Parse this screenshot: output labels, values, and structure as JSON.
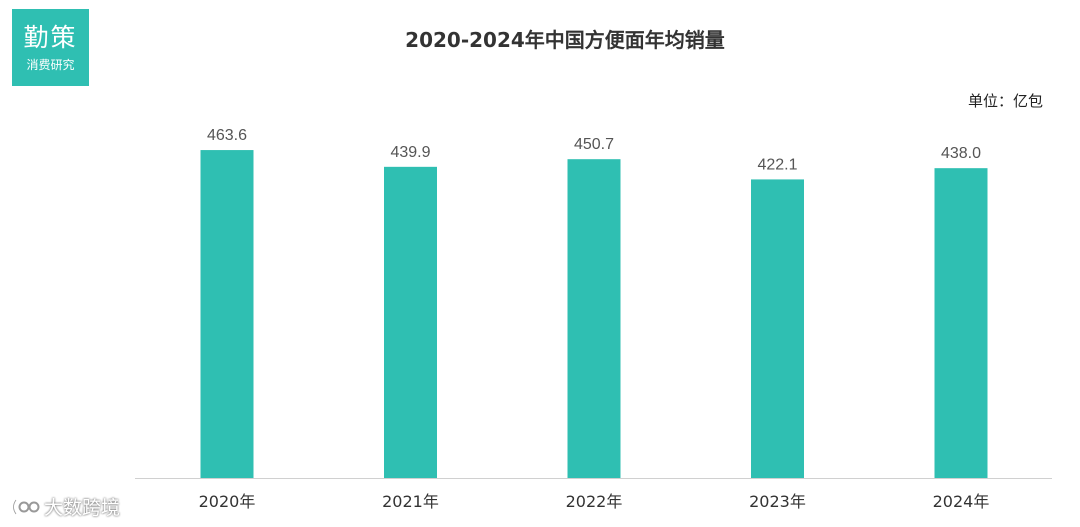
{
  "logo": {
    "main": "勤策",
    "sub": "消费研究"
  },
  "watermark": {
    "text": "大数跨境"
  },
  "colors": {
    "bar": "#2fbfb2",
    "axis": "#d0d0d0",
    "label": "#555555",
    "tick": "#333333"
  },
  "chart_data": {
    "type": "bar",
    "title": "2020-2024年中国方便面年均销量",
    "unit": "单位：亿包",
    "categories": [
      "2020年",
      "2021年",
      "2022年",
      "2023年",
      "2024年"
    ],
    "values": [
      463.6,
      439.9,
      450.7,
      422.1,
      438.0
    ],
    "value_labels": [
      "463.6",
      "439.9",
      "450.7",
      "422.1",
      "438.0"
    ],
    "ylim": [
      0,
      475
    ],
    "grid": false,
    "legend": false
  }
}
